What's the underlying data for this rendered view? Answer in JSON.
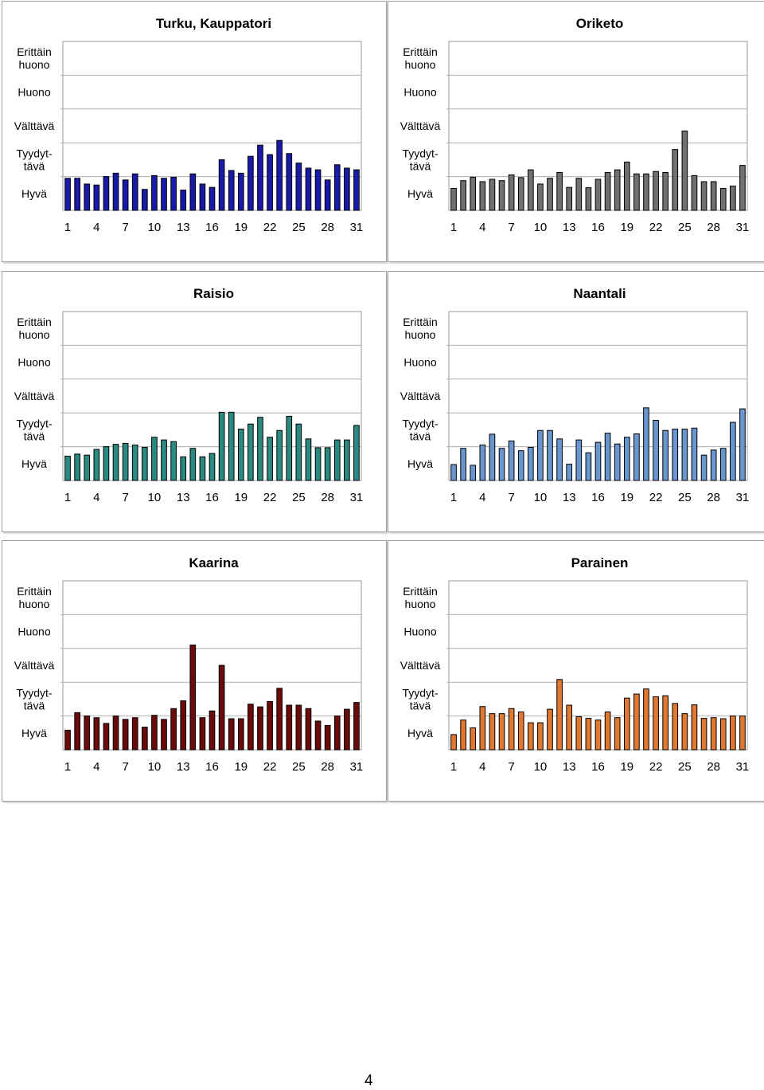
{
  "chart_data": [
    {
      "type": "bar",
      "title": "Turku, Kauppatori",
      "color": "#1a1aaa",
      "categories_count": 31,
      "xticks": [
        "1",
        "4",
        "7",
        "10",
        "13",
        "16",
        "19",
        "22",
        "25",
        "28",
        "31"
      ],
      "yticks": [
        "Hyvä",
        "Tyydyt-\ntävä",
        "Välttävä",
        "Huono",
        "Erittäin\nhuono"
      ],
      "ylim": [
        0,
        5
      ],
      "grid": true,
      "values": [
        0.95,
        0.95,
        0.78,
        0.75,
        1.0,
        1.1,
        0.9,
        1.08,
        0.62,
        1.03,
        0.95,
        0.98,
        0.6,
        1.08,
        0.78,
        0.68,
        1.5,
        1.18,
        1.1,
        1.6,
        1.93,
        1.65,
        2.07,
        1.68,
        1.4,
        1.25,
        1.2,
        0.9,
        1.35,
        1.25,
        1.2
      ]
    },
    {
      "type": "bar",
      "title": "Oriketo",
      "color": "#707070",
      "categories_count": 31,
      "xticks": [
        "1",
        "4",
        "7",
        "10",
        "13",
        "16",
        "19",
        "22",
        "25",
        "28",
        "31"
      ],
      "yticks": [
        "Hyvä",
        "Tyydyt-\ntävä",
        "Välttävä",
        "Huono",
        "Erittäin\nhuono"
      ],
      "ylim": [
        0,
        5
      ],
      "grid": true,
      "values": [
        0.65,
        0.88,
        0.98,
        0.85,
        0.92,
        0.88,
        1.05,
        0.97,
        1.2,
        0.78,
        0.95,
        1.12,
        0.68,
        0.95,
        0.67,
        0.92,
        1.12,
        1.2,
        1.43,
        1.08,
        1.08,
        1.15,
        1.12,
        1.8,
        2.35,
        1.03,
        0.85,
        0.85,
        0.65,
        0.72,
        1.33
      ]
    },
    {
      "type": "bar",
      "title": "Raisio",
      "color": "#2a8a80",
      "categories_count": 31,
      "xticks": [
        "1",
        "4",
        "7",
        "10",
        "13",
        "16",
        "19",
        "22",
        "25",
        "28",
        "31"
      ],
      "yticks": [
        "Hyvä",
        "Tyydyt-\ntävä",
        "Välttävä",
        "Huono",
        "Erittäin\nhuono"
      ],
      "ylim": [
        0,
        5
      ],
      "grid": true,
      "values": [
        0.72,
        0.78,
        0.75,
        0.92,
        1.0,
        1.07,
        1.1,
        1.05,
        0.98,
        1.28,
        1.2,
        1.15,
        0.7,
        0.95,
        0.7,
        0.8,
        2.02,
        2.02,
        1.52,
        1.67,
        1.87,
        1.28,
        1.48,
        1.9,
        1.67,
        1.23,
        0.97,
        0.97,
        1.2,
        1.2,
        1.63
      ]
    },
    {
      "type": "bar",
      "title": "Naantali",
      "color": "#6a96d0",
      "categories_count": 31,
      "xticks": [
        "1",
        "4",
        "7",
        "10",
        "13",
        "16",
        "19",
        "22",
        "25",
        "28",
        "31"
      ],
      "yticks": [
        "Hyvä",
        "Tyydyt-\ntävä",
        "Välttävä",
        "Huono",
        "Erittäin\nhuono"
      ],
      "ylim": [
        0,
        5
      ],
      "grid": true,
      "values": [
        0.47,
        0.95,
        0.45,
        1.05,
        1.37,
        0.95,
        1.17,
        0.88,
        0.98,
        1.48,
        1.48,
        1.23,
        0.48,
        1.2,
        0.82,
        1.13,
        1.4,
        1.08,
        1.28,
        1.38,
        2.15,
        1.78,
        1.48,
        1.52,
        1.52,
        1.55,
        0.75,
        0.9,
        0.95,
        1.72,
        2.12
      ]
    },
    {
      "type": "bar",
      "title": "Kaarina",
      "color": "#6a0a0a",
      "categories_count": 31,
      "xticks": [
        "1",
        "4",
        "7",
        "10",
        "13",
        "16",
        "19",
        "22",
        "25",
        "28",
        "31"
      ],
      "yticks": [
        "Hyvä",
        "Tyydyt-\ntävä",
        "Välttävä",
        "Huono",
        "Erittäin\nhuono"
      ],
      "ylim": [
        0,
        5
      ],
      "grid": true,
      "values": [
        0.58,
        1.1,
        1.0,
        0.95,
        0.78,
        1.0,
        0.9,
        0.95,
        0.67,
        1.02,
        0.9,
        1.22,
        1.45,
        3.1,
        0.95,
        1.15,
        2.5,
        0.92,
        0.92,
        1.35,
        1.27,
        1.43,
        1.82,
        1.32,
        1.32,
        1.22,
        0.85,
        0.72,
        1.0,
        1.2,
        1.4
      ]
    },
    {
      "type": "bar",
      "title": "Parainen",
      "color": "#e07830",
      "categories_count": 31,
      "xticks": [
        "1",
        "4",
        "7",
        "10",
        "13",
        "16",
        "19",
        "22",
        "25",
        "28",
        "31"
      ],
      "yticks": [
        "Hyvä",
        "Tyydyt-\ntävä",
        "Välttävä",
        "Huono",
        "Erittäin\nhuono"
      ],
      "ylim": [
        0,
        5
      ],
      "grid": true,
      "values": [
        0.45,
        0.88,
        0.65,
        1.28,
        1.07,
        1.07,
        1.22,
        1.12,
        0.8,
        0.8,
        1.2,
        2.08,
        1.32,
        0.98,
        0.93,
        0.88,
        1.12,
        0.95,
        1.53,
        1.65,
        1.8,
        1.57,
        1.6,
        1.37,
        1.07,
        1.33,
        0.93,
        0.95,
        0.92,
        1.0,
        1.0
      ]
    }
  ],
  "footer": {
    "page_number": "4"
  }
}
